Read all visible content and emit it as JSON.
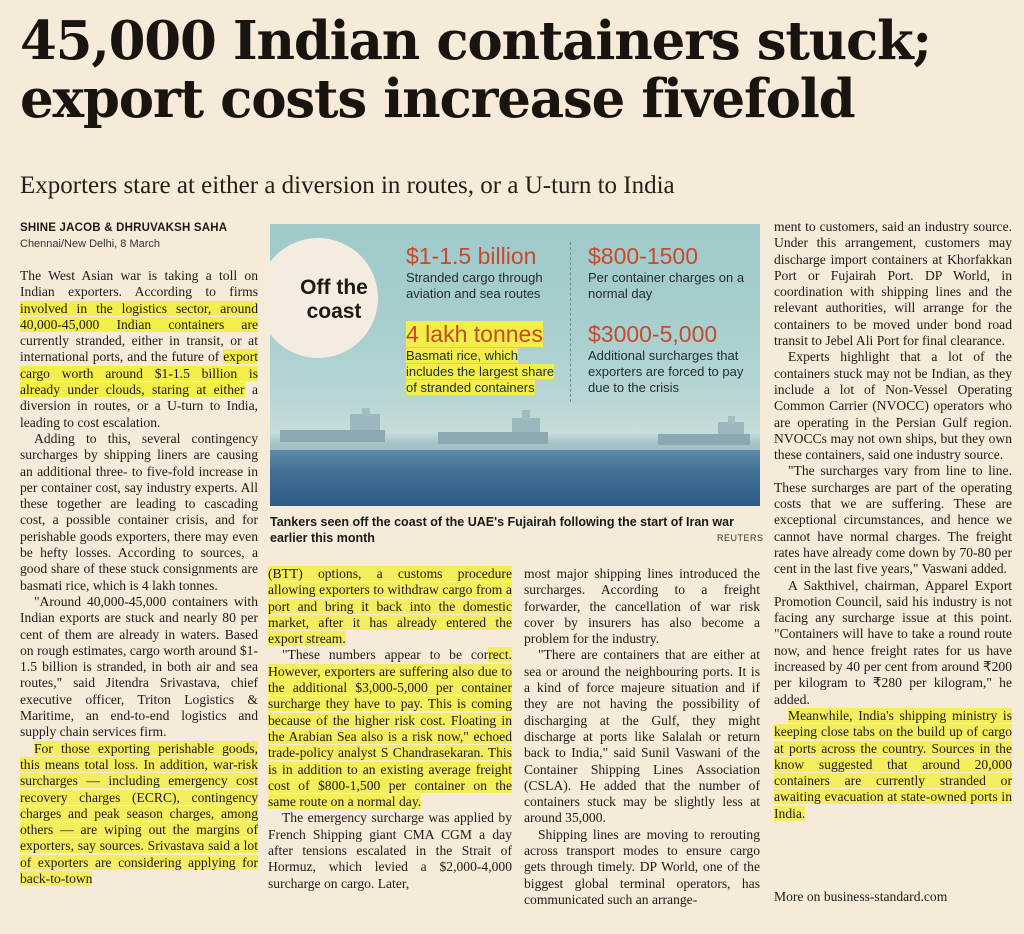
{
  "headline": "45,000 Indian containers stuck; export costs increase fivefold",
  "deck": "Exporters stare at either a diversion in routes, or a U-turn to India",
  "byline": "SHINE JACOB & DHRUVAKSH SAHA",
  "dateline": "Chennai/New Delhi, 8 March",
  "infographic": {
    "title": "Off the coast",
    "stats": [
      {
        "value": "$1-1.5 billion",
        "desc": "Stranded cargo through aviation and sea routes"
      },
      {
        "value": "$800-1500",
        "desc": "Per container charges on a normal day"
      },
      {
        "value": "4 lakh tonnes",
        "desc": "Basmati rice, which includes the largest share of stranded containers"
      },
      {
        "value": "$3000-5,000",
        "desc": "Additional surcharges that exporters are forced to pay due to the crisis"
      }
    ]
  },
  "photo": {
    "caption": "Tankers seen off the coast of the UAE's Fujairah following the start of Iran war earlier this month",
    "credit": "REUTERS"
  },
  "body": {
    "c1p1a": "The West Asian war is taking a toll on Indian exporters. According to firms ",
    "c1p1b": "involved in the logistics sector, around 40,000-45,000 Indian containers are",
    "c1p1c": " currently stranded, either in transit, or at international ports, and the future of ",
    "c1p1d": "export cargo worth around $1-1.5 billion is already under clouds, staring at either",
    "c1p1e": " a diversion in routes, or a U-turn to India, leading to cost escalation.",
    "c1p2": "Adding to this, several contingency surcharges by shipping liners are causing an additional three- to five-fold increase in per container cost, say industry experts. All these together are leading to cascading cost, a possible container crisis, and for perishable goods exporters, there may even be hefty losses. According to sources, a good share of these stuck consignments are basmati rice, which is 4 lakh tonnes.",
    "c1p3": "\"Around 40,000-45,000 containers with Indian exports are stuck and nearly 80 per cent of them are already in waters. Based on rough estimates, cargo worth around $1-1.5 billion is stranded, in both air and sea routes,\" said Jitendra Srivastava, chief executive officer, Triton Logistics & Maritime, an end-to-end logistics and supply chain services firm.",
    "c1p4": "For those exporting perishable goods, this means total loss. In addition, war-risk surcharges — including emergency cost recovery charges (ECRC), contingency charges and peak season charges, among others — are wiping out the margins of exporters, say sources. Srivastava said a lot of exporters are considering applying for back-to-town",
    "c2p1": "(BTT) options, a customs procedure allowing exporters to withdraw cargo from a port and bring it back into the domestic market, after it has already entered the export stream.",
    "c2p2a": "\"These numbers appear to be cor",
    "c2p2b": "rect. However, exporters are suffering also due to the additional $3,000-5,000 per container surcharge they have to pay. This is coming because of the higher risk cost. Floating in the Arabian Sea also is a risk now,\" echoed trade-policy analyst S Chandrasekaran. This is in addition to an existing average freight cost of $800-1,500 per container on the same route on a normal day.",
    "c2p3": "The emergency surcharge was applied by French Shipping giant CMA CGM a day after tensions escalated in the Strait of Hormuz, which levied a $2,000-4,000 surcharge on cargo. Later,",
    "c3p1": "most major shipping lines introduced the surcharges. According to a freight forwarder, the cancellation of war risk cover by insurers has also become a problem for the industry.",
    "c3p2": "\"There are containers that are either at sea or around the neighbouring ports. It is a kind of force majeure situation and if they are not having the possibility of discharging at the Gulf, they might discharge at ports like Salalah or return back to India,\" said Sunil Vaswani of the Container Shipping Lines Association (CSLA). He added that the number of containers stuck may be slightly less at around 35,000.",
    "c3p3": "Shipping lines are moving to rerouting across transport modes to ensure cargo gets through timely. DP World, one of the biggest global terminal operators, has communicated such an arrange-",
    "c4p1": "ment to customers, said an industry source. Under this arrangement, customers may discharge import containers at Khorfakkan Port or Fujairah Port. DP World, in coordination with shipping lines and the relevant authorities, will arrange for the containers to be moved under bond road transit to Jebel Ali Port for final clearance.",
    "c4p2": "Experts highlight that a lot of the containers stuck may not be Indian, as they include a lot of Non-Vessel Operating Common Carrier (NVOCC) operators who are operating in the Persian Gulf region. NVOCCs may not own ships, but they own these containers, said one industry source.",
    "c4p3": "\"The surcharges vary from line to line. These surcharges are part of the operating costs that we are suffering. These are exceptional circumstances, and hence we cannot have normal charges. The freight rates have already come down by 70-80 per cent in the last five years,\" Vaswani added.",
    "c4p4": "A Sakthivel, chairman, Apparel Export Promotion Council, said his industry is not facing any surcharge issue at this point. \"Containers will have to take a round route now, and hence freight rates for us have increased by 40 per cent from around ₹200 per kilogram to ₹280 per kilogram,\" he added.",
    "c4p5": "Meanwhile, India's shipping ministry is keeping close tabs on the build up of cargo at ports across the country. Sources in the know suggested that around 20,000 containers are currently stranded or awaiting evacuation at state-owned ports in India."
  },
  "footer": "More on business-standard.com",
  "colors": {
    "background": "#f6ead8",
    "highlight": "#f3ee4a",
    "stat_value": "#c84a28",
    "photo_sky": "#a9cfcf",
    "photo_sea": "#2f5c84"
  }
}
